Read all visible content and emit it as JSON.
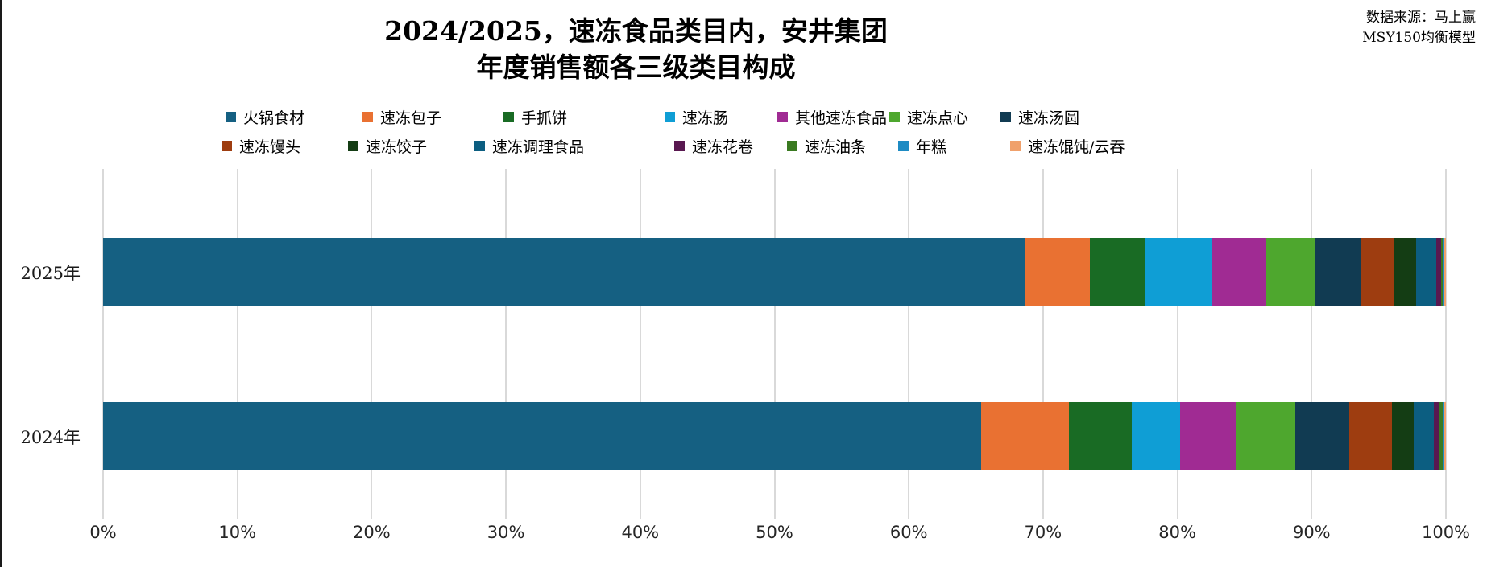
{
  "title": {
    "line1": "2024/2025，速冻食品类目内，安井集团",
    "line2": "年度销售额各三级类目构成"
  },
  "source": {
    "line1": "数据来源：马上赢",
    "line2": "MSY150均衡模型"
  },
  "chart_data": {
    "type": "bar",
    "orientation": "horizontal",
    "stacked": true,
    "unit": "percent",
    "grid": true,
    "legend_position": "top",
    "categories": [
      "2025年",
      "2024年"
    ],
    "x_axis": {
      "range": [
        0,
        100
      ],
      "tick_step": 10,
      "ticks": [
        "0%",
        "10%",
        "20%",
        "30%",
        "40%",
        "50%",
        "60%",
        "70%",
        "80%",
        "90%",
        "100%"
      ]
    },
    "series": [
      {
        "name": "火锅食材",
        "color": "#156082",
        "values": [
          68.7,
          65.4
        ]
      },
      {
        "name": "速冻包子",
        "color": "#E97132",
        "values": [
          4.8,
          6.5
        ]
      },
      {
        "name": "手抓饼",
        "color": "#196B24",
        "values": [
          4.1,
          4.7
        ]
      },
      {
        "name": "速冻肠",
        "color": "#0F9ED5",
        "values": [
          5.0,
          3.6
        ]
      },
      {
        "name": "其他速冻食品",
        "color": "#A02B93",
        "values": [
          4.0,
          4.2
        ]
      },
      {
        "name": "速冻点心",
        "color": "#4EA72E",
        "values": [
          3.7,
          4.4
        ]
      },
      {
        "name": "速冻汤圆",
        "color": "#113B52",
        "values": [
          3.4,
          4.0
        ]
      },
      {
        "name": "速冻馒头",
        "color": "#9E3D10",
        "values": [
          2.4,
          3.2
        ]
      },
      {
        "name": "速冻饺子",
        "color": "#143D14",
        "values": [
          1.7,
          1.6
        ]
      },
      {
        "name": "速冻调理食品",
        "color": "#0C5E81",
        "values": [
          1.5,
          1.5
        ]
      },
      {
        "name": "速冻花卷",
        "color": "#591850",
        "values": [
          0.34,
          0.4
        ]
      },
      {
        "name": "速冻油条",
        "color": "#3A7A21",
        "values": [
          0.12,
          0.25
        ]
      },
      {
        "name": "年糕",
        "color": "#1E8BC3",
        "values": [
          0.12,
          0.12
        ]
      },
      {
        "name": "速冻馄饨/云吞",
        "color": "#F0A16C",
        "values": [
          0.12,
          0.13
        ]
      }
    ]
  }
}
